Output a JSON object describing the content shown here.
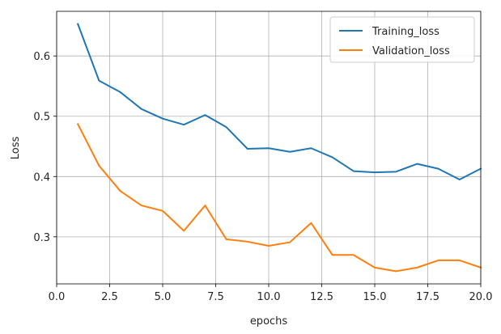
{
  "chart_data": {
    "type": "line",
    "title": "",
    "xlabel": "epochs",
    "ylabel": "Loss",
    "xlim": [
      0.0,
      20.0
    ],
    "ylim": [
      0.222,
      0.674
    ],
    "xticks": [
      0.0,
      2.5,
      5.0,
      7.5,
      10.0,
      12.5,
      15.0,
      17.5,
      20.0
    ],
    "xtick_labels": [
      "0.0",
      "2.5",
      "5.0",
      "7.5",
      "10.0",
      "12.5",
      "15.0",
      "17.5",
      "20.0"
    ],
    "yticks": [
      0.3,
      0.4,
      0.5,
      0.6
    ],
    "ytick_labels": [
      "0.3",
      "0.4",
      "0.5",
      "0.6"
    ],
    "grid": true,
    "legend_position": "top-right",
    "x": [
      1,
      2,
      3,
      4,
      5,
      6,
      7,
      8,
      9,
      10,
      11,
      12,
      13,
      14,
      15,
      16,
      17,
      18,
      19,
      20
    ],
    "series": [
      {
        "name": "Training_loss",
        "color": "#1f77b4",
        "values": [
          0.653,
          0.559,
          0.54,
          0.512,
          0.496,
          0.486,
          0.502,
          0.482,
          0.446,
          0.447,
          0.441,
          0.447,
          0.432,
          0.409,
          0.407,
          0.408,
          0.421,
          0.413,
          0.395,
          0.413
        ]
      },
      {
        "name": "Validation_loss",
        "color": "#ff7f0e",
        "values": [
          0.487,
          0.418,
          0.376,
          0.352,
          0.343,
          0.31,
          0.352,
          0.296,
          0.292,
          0.285,
          0.291,
          0.323,
          0.27,
          0.27,
          0.249,
          0.243,
          0.249,
          0.261,
          0.261,
          0.249
        ]
      }
    ]
  }
}
